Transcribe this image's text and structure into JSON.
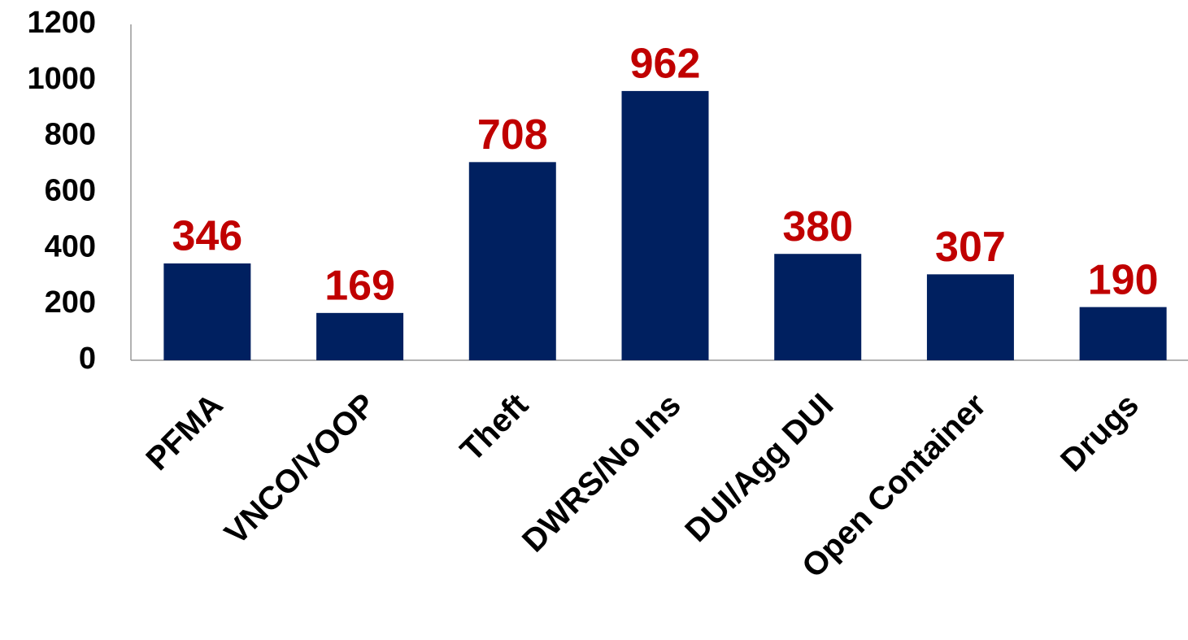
{
  "chart_data": {
    "type": "bar",
    "categories": [
      "PFMA",
      "VNCO/VOOP",
      "Theft",
      "DWRS/No Ins",
      "DUI/Agg DUI",
      "Open Container",
      "Drugs"
    ],
    "values": [
      346,
      169,
      708,
      962,
      380,
      307,
      190
    ],
    "color": "#002060",
    "value_label_color": "#c00000",
    "ylim": [
      0,
      1200
    ],
    "yticks": [
      0,
      200,
      400,
      600,
      800,
      1000,
      1200
    ],
    "grid": false
  }
}
